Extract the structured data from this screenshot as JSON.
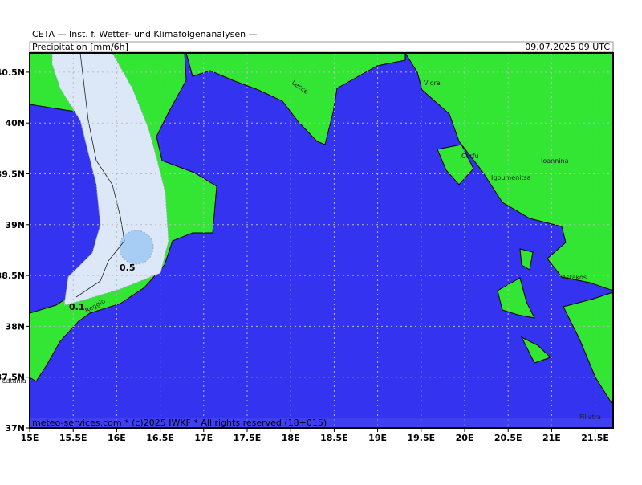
{
  "header": {
    "institute": "CETA — Inst. f. Wetter- und Klimafolgenanalysen —",
    "parameter": "Precipitation [mm/6h]",
    "valid_time": "09.07.2025 09 UTC"
  },
  "axes": {
    "x_labels": [
      "15E",
      "15.5E",
      "16E",
      "16.5E",
      "17E",
      "17.5E",
      "18E",
      "18.5E",
      "19E",
      "19.5E",
      "20E",
      "20.5E",
      "21E",
      "21.5E"
    ],
    "y_labels": [
      "37N",
      "37.5N",
      "38N",
      "38.5N",
      "39N",
      "39.5N",
      "40N",
      "40.5N"
    ]
  },
  "places": [
    "Vlora",
    "Lecce",
    "Corfu",
    "Igoumenitsa",
    "Ioannina",
    "Astakos",
    "Reggio",
    "Catania",
    "Filiatra"
  ],
  "contours": [
    "0.5",
    "0.1"
  ],
  "footer": "meteo-services.com * (c)2025 IWKF * All rights reserved (18+015)"
}
